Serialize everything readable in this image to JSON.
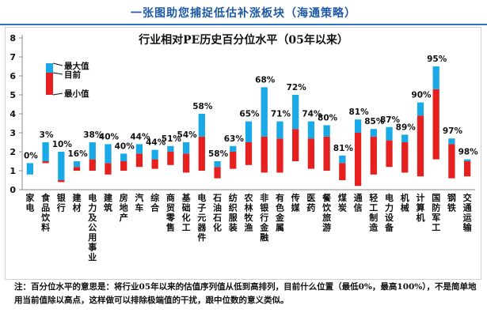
{
  "banner": "一张图助您捕捉低估补涨板块（海通策略）",
  "footnote": "注：百分位水平的意思是：将行业05年以来的估值序列值从低到高排列，目前什么位置（最低0%，最高100%），不是简单地用当前值除以高点，这样做可以排除极端值的干扰，跟中位数的意义类似。",
  "chart_data": {
    "type": "bar",
    "title": "行业相对PE历史百分位水平（05年以来）",
    "ylim": [
      0,
      8
    ],
    "yticks": [
      "0",
      "1",
      "2",
      "3",
      "4",
      "5",
      "6",
      "7",
      "8"
    ],
    "legend": [
      "最大值",
      "目前",
      "最小值"
    ],
    "legend_position": "top-left",
    "colors": {
      "max": "#18a9e6",
      "min": "#e6201e",
      "axis": "#888888"
    },
    "categories": [
      "家电",
      "食品饮料",
      "银行",
      "建材",
      "电力及公用事业",
      "建筑",
      "房地产",
      "汽车",
      "综合",
      "商贸零售",
      "基础化工",
      "电子元器件",
      "石油石化",
      "纺织服装",
      "农林牧渔",
      "非银行金融",
      "有色金属",
      "传媒",
      "医药",
      "餐饮旅游",
      "煤炭",
      "通信",
      "轻工制造",
      "电力设备",
      "机械",
      "计算机",
      "国防军工",
      "钢铁",
      "交通运输"
    ],
    "percentiles": [
      "0%",
      "3%",
      "10%",
      "16%",
      "38%",
      "40%",
      "40%",
      "44%",
      "44%",
      "51%",
      "54%",
      "58%",
      "58%",
      "63%",
      "65%",
      "68%",
      "71%",
      "72%",
      "74%",
      "80%",
      "81%",
      "81%",
      "85%",
      "87%",
      "89%",
      "90%",
      "95%",
      "97%",
      "98%"
    ],
    "series": [
      {
        "name": "最小值",
        "values": [
          0.8,
          1.4,
          0.4,
          1.0,
          1.0,
          0.8,
          1.0,
          1.2,
          1.1,
          1.3,
          0.9,
          1.0,
          0.6,
          1.1,
          1.3,
          0.9,
          0.9,
          1.5,
          1.1,
          1.0,
          0.5,
          0.2,
          0.8,
          1.2,
          0.9,
          0.7,
          1.6,
          0.6,
          0.7
        ]
      },
      {
        "name": "目前",
        "values": [
          0.8,
          1.5,
          0.5,
          1.2,
          1.6,
          1.4,
          1.5,
          1.9,
          1.6,
          2.0,
          1.9,
          2.8,
          1.2,
          2.0,
          2.5,
          2.8,
          2.7,
          3.2,
          2.7,
          2.8,
          1.4,
          3.0,
          2.8,
          2.6,
          2.5,
          3.9,
          5.3,
          2.4,
          1.5
        ]
      },
      {
        "name": "最大值",
        "values": [
          1.4,
          2.5,
          2.0,
          1.5,
          2.5,
          2.4,
          1.9,
          2.4,
          2.1,
          2.3,
          2.5,
          4.0,
          1.5,
          2.3,
          3.6,
          5.4,
          3.6,
          5.0,
          3.6,
          3.4,
          1.8,
          3.7,
          3.2,
          3.3,
          2.9,
          4.6,
          6.5,
          2.7,
          1.6
        ]
      }
    ]
  }
}
